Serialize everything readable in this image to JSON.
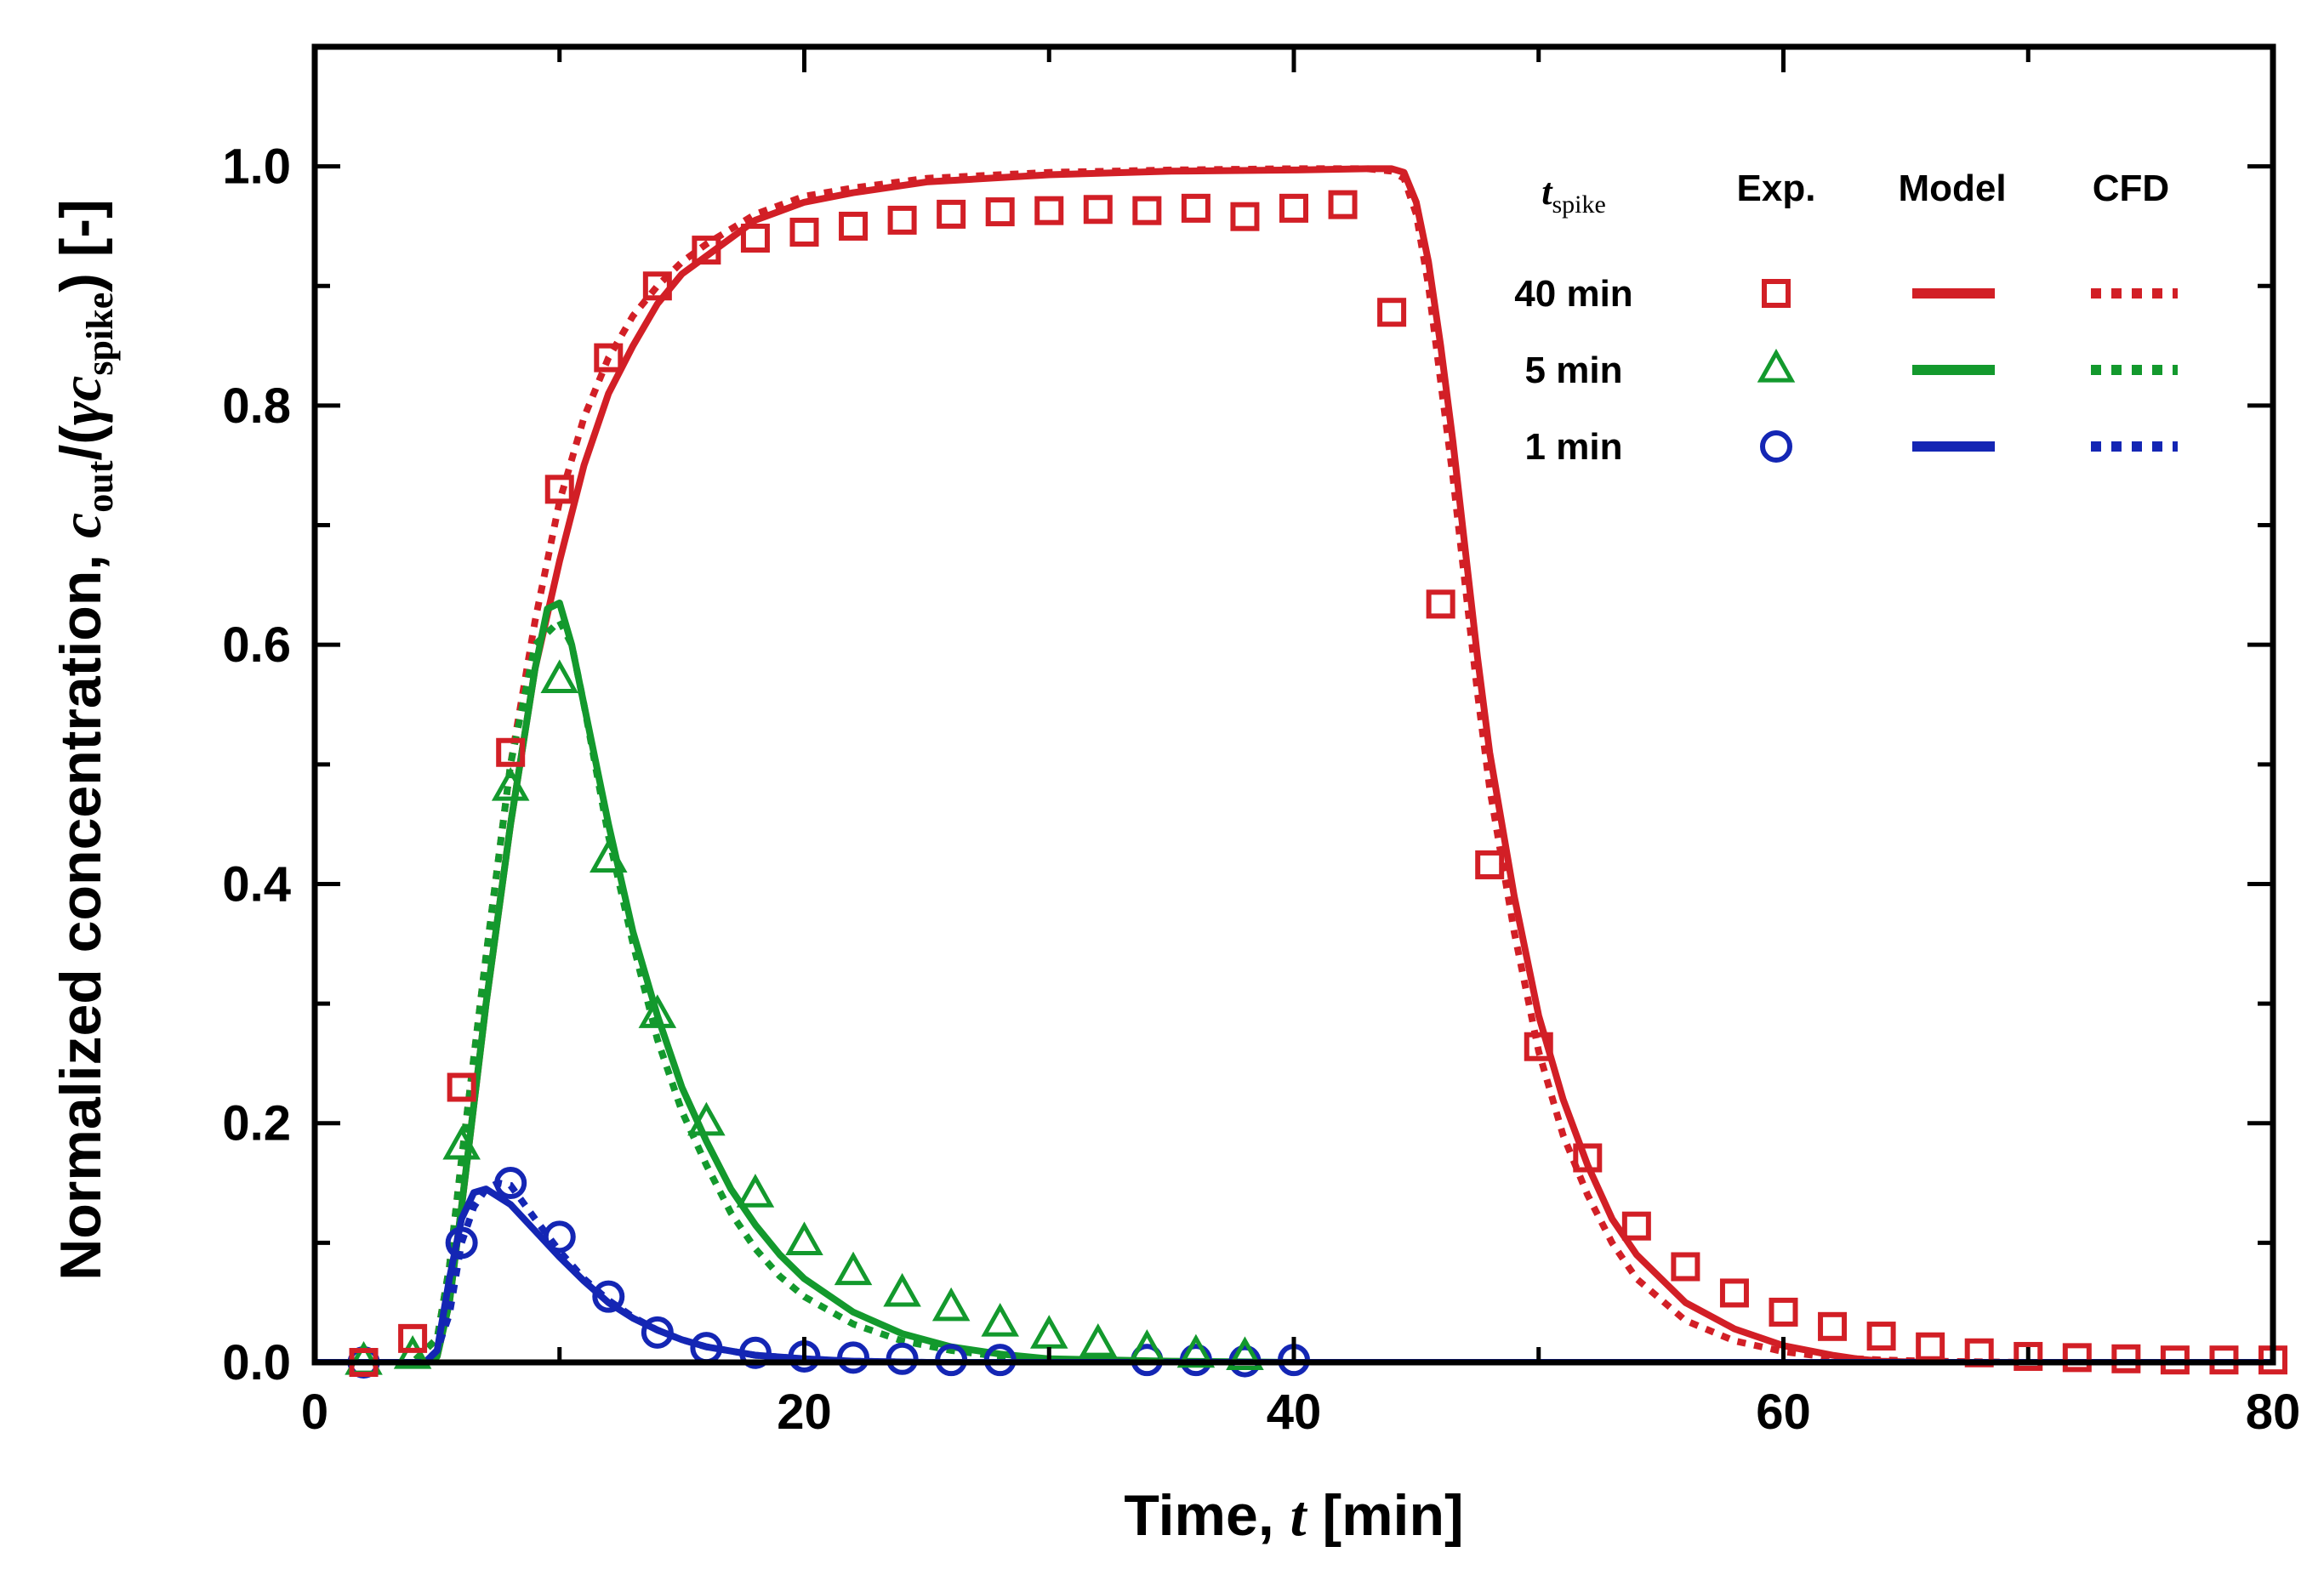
{
  "chart_data": {
    "type": "line",
    "title": "",
    "xlabel": "Time, t [min]",
    "xlabel_parts": [
      "Time, ",
      "t",
      " [min]"
    ],
    "ylabel": "Normalized concentration, c_out/(γ c_spike) [-]",
    "ylabel_parts": [
      "Normalized concentration, ",
      "c",
      "out",
      "/(",
      "γc",
      "spike",
      ") [-]"
    ],
    "xlim": [
      0,
      80
    ],
    "ylim": [
      0,
      1.1
    ],
    "xticks": [
      0,
      20,
      40,
      60,
      80
    ],
    "xtick_labels": [
      "0",
      "20",
      "40",
      "60",
      "80"
    ],
    "yticks": [
      0,
      0.2,
      0.4,
      0.6,
      0.8,
      1.0
    ],
    "ytick_labels": [
      "0.0",
      "0.2",
      "0.4",
      "0.6",
      "0.8",
      "1.0"
    ],
    "grid": false,
    "legend": {
      "position": "top-right",
      "header": {
        "t": "t",
        "sub": "spike",
        "exp": "Exp.",
        "model": "Model",
        "cfd": "CFD"
      },
      "entries": [
        "40 min",
        "5 min",
        "1 min"
      ]
    },
    "series": [
      {
        "name": "40 min",
        "color": "#d21f26",
        "marker": "square",
        "exp": {
          "x": [
            2,
            4,
            6,
            8,
            10,
            12,
            14,
            16,
            18,
            20,
            22,
            24,
            26,
            28,
            30,
            32,
            34,
            36,
            38,
            40,
            42,
            44,
            46,
            48,
            50,
            52,
            54,
            56,
            58,
            60,
            62,
            64,
            66,
            68,
            70,
            72,
            74,
            76,
            78,
            80
          ],
          "y": [
            0.0,
            0.02,
            0.23,
            0.51,
            0.73,
            0.84,
            0.9,
            0.93,
            0.94,
            0.945,
            0.95,
            0.955,
            0.96,
            0.962,
            0.963,
            0.964,
            0.963,
            0.965,
            0.958,
            0.965,
            0.968,
            0.878,
            0.634,
            0.416,
            0.264,
            0.171,
            0.114,
            0.08,
            0.058,
            0.042,
            0.03,
            0.022,
            0.013,
            0.008,
            0.005,
            0.004,
            0.003,
            0.002,
            0.002,
            0.002
          ]
        },
        "model": {
          "x": [
            0,
            2,
            4,
            4.5,
            5,
            5.5,
            6,
            7,
            8,
            9,
            10,
            11,
            12,
            13,
            14,
            15,
            16,
            18,
            20,
            22,
            25,
            30,
            35,
            40,
            43,
            44,
            44.5,
            45,
            45.5,
            46,
            46.5,
            47,
            47.5,
            48,
            49,
            50,
            51,
            52,
            53,
            54,
            56,
            58,
            60,
            62,
            63,
            64,
            66,
            70,
            75,
            80
          ],
          "y": [
            0,
            0,
            0,
            0,
            0.005,
            0.05,
            0.13,
            0.3,
            0.45,
            0.58,
            0.67,
            0.75,
            0.81,
            0.85,
            0.885,
            0.91,
            0.925,
            0.955,
            0.97,
            0.978,
            0.987,
            0.993,
            0.996,
            0.997,
            0.998,
            0.998,
            0.995,
            0.97,
            0.92,
            0.85,
            0.77,
            0.68,
            0.59,
            0.51,
            0.39,
            0.29,
            0.22,
            0.165,
            0.12,
            0.09,
            0.05,
            0.028,
            0.014,
            0.006,
            0.003,
            0.001,
            0,
            0,
            0,
            0
          ]
        },
        "cfd": {
          "x": [
            0,
            2,
            4,
            5,
            5.5,
            6,
            7,
            8,
            9,
            10,
            11,
            12,
            13,
            14,
            15,
            16,
            18,
            20,
            22,
            25,
            30,
            35,
            40,
            43,
            44,
            44.5,
            45,
            45.5,
            46,
            46.5,
            47,
            47.5,
            48,
            49,
            50,
            51,
            52,
            53,
            54,
            56,
            58,
            60,
            62,
            64,
            66,
            70,
            75,
            80
          ],
          "y": [
            0,
            0,
            0,
            0.02,
            0.08,
            0.17,
            0.34,
            0.5,
            0.62,
            0.72,
            0.79,
            0.84,
            0.875,
            0.9,
            0.92,
            0.935,
            0.96,
            0.975,
            0.982,
            0.99,
            0.995,
            0.997,
            0.998,
            0.998,
            0.996,
            0.99,
            0.96,
            0.9,
            0.82,
            0.74,
            0.65,
            0.56,
            0.48,
            0.36,
            0.26,
            0.19,
            0.14,
            0.1,
            0.07,
            0.035,
            0.018,
            0.009,
            0.004,
            0.002,
            0.001,
            0,
            0,
            0
          ]
        }
      },
      {
        "name": "5 min",
        "color": "#13992d",
        "marker": "triangle",
        "exp": {
          "x": [
            2,
            4,
            6,
            8,
            10,
            12,
            14,
            16,
            18,
            20,
            22,
            24,
            26,
            28,
            30,
            32,
            34,
            36,
            38
          ],
          "y": [
            0.0,
            0.005,
            0.18,
            0.48,
            0.57,
            0.42,
            0.29,
            0.2,
            0.14,
            0.1,
            0.075,
            0.057,
            0.045,
            0.032,
            0.022,
            0.015,
            0.01,
            0.006,
            0.004
          ]
        },
        "model": {
          "x": [
            0,
            4,
            4.5,
            5,
            5.5,
            6,
            7,
            8,
            9,
            9.5,
            10,
            10.5,
            11,
            12,
            13,
            14,
            15,
            16,
            17,
            18,
            19,
            20,
            22,
            24,
            26,
            28,
            30,
            35,
            40,
            80
          ],
          "y": [
            0,
            0,
            0,
            0.005,
            0.05,
            0.13,
            0.3,
            0.45,
            0.58,
            0.63,
            0.635,
            0.6,
            0.55,
            0.45,
            0.36,
            0.29,
            0.23,
            0.185,
            0.145,
            0.115,
            0.09,
            0.07,
            0.042,
            0.024,
            0.013,
            0.007,
            0.003,
            0.001,
            0,
            0
          ]
        },
        "cfd": {
          "x": [
            0,
            4,
            5,
            5.5,
            6,
            7,
            8,
            9,
            10,
            10.5,
            11,
            12,
            13,
            14,
            15,
            16,
            17,
            18,
            19,
            20,
            22,
            24,
            26,
            28,
            30,
            35,
            40,
            80
          ],
          "y": [
            0,
            0,
            0.02,
            0.08,
            0.17,
            0.34,
            0.5,
            0.6,
            0.62,
            0.6,
            0.55,
            0.44,
            0.35,
            0.27,
            0.21,
            0.165,
            0.125,
            0.095,
            0.072,
            0.055,
            0.032,
            0.018,
            0.01,
            0.005,
            0.002,
            0,
            0,
            0
          ]
        }
      },
      {
        "name": "1 min",
        "color": "#1426b4",
        "marker": "circle",
        "exp": {
          "x": [
            2,
            6,
            8,
            10,
            12,
            14,
            16,
            18,
            20,
            22,
            24,
            26,
            28,
            34,
            36,
            38,
            40
          ],
          "y": [
            0.0,
            0.1,
            0.15,
            0.105,
            0.055,
            0.025,
            0.012,
            0.008,
            0.005,
            0.004,
            0.003,
            0.002,
            0.002,
            0.002,
            0.002,
            0.001,
            0.002
          ]
        },
        "model": {
          "x": [
            0,
            4.5,
            5,
            5.5,
            6,
            6.5,
            7,
            8,
            9,
            10,
            11,
            12,
            13,
            14,
            15,
            16,
            18,
            20,
            22,
            25,
            30,
            80
          ],
          "y": [
            0,
            0,
            0.01,
            0.07,
            0.12,
            0.142,
            0.145,
            0.132,
            0.11,
            0.088,
            0.068,
            0.05,
            0.037,
            0.027,
            0.019,
            0.013,
            0.006,
            0.003,
            0.001,
            0,
            0,
            0
          ]
        },
        "cfd": {
          "x": [
            0,
            4.5,
            5,
            5.5,
            6,
            6.5,
            7,
            7.5,
            8,
            9,
            10,
            11,
            12,
            13,
            14,
            15,
            16,
            18,
            20,
            22,
            25,
            30,
            80
          ],
          "y": [
            0,
            0,
            0.01,
            0.04,
            0.1,
            0.13,
            0.145,
            0.15,
            0.148,
            0.12,
            0.093,
            0.07,
            0.052,
            0.038,
            0.027,
            0.019,
            0.013,
            0.006,
            0.003,
            0.001,
            0,
            0,
            0
          ]
        }
      }
    ]
  }
}
